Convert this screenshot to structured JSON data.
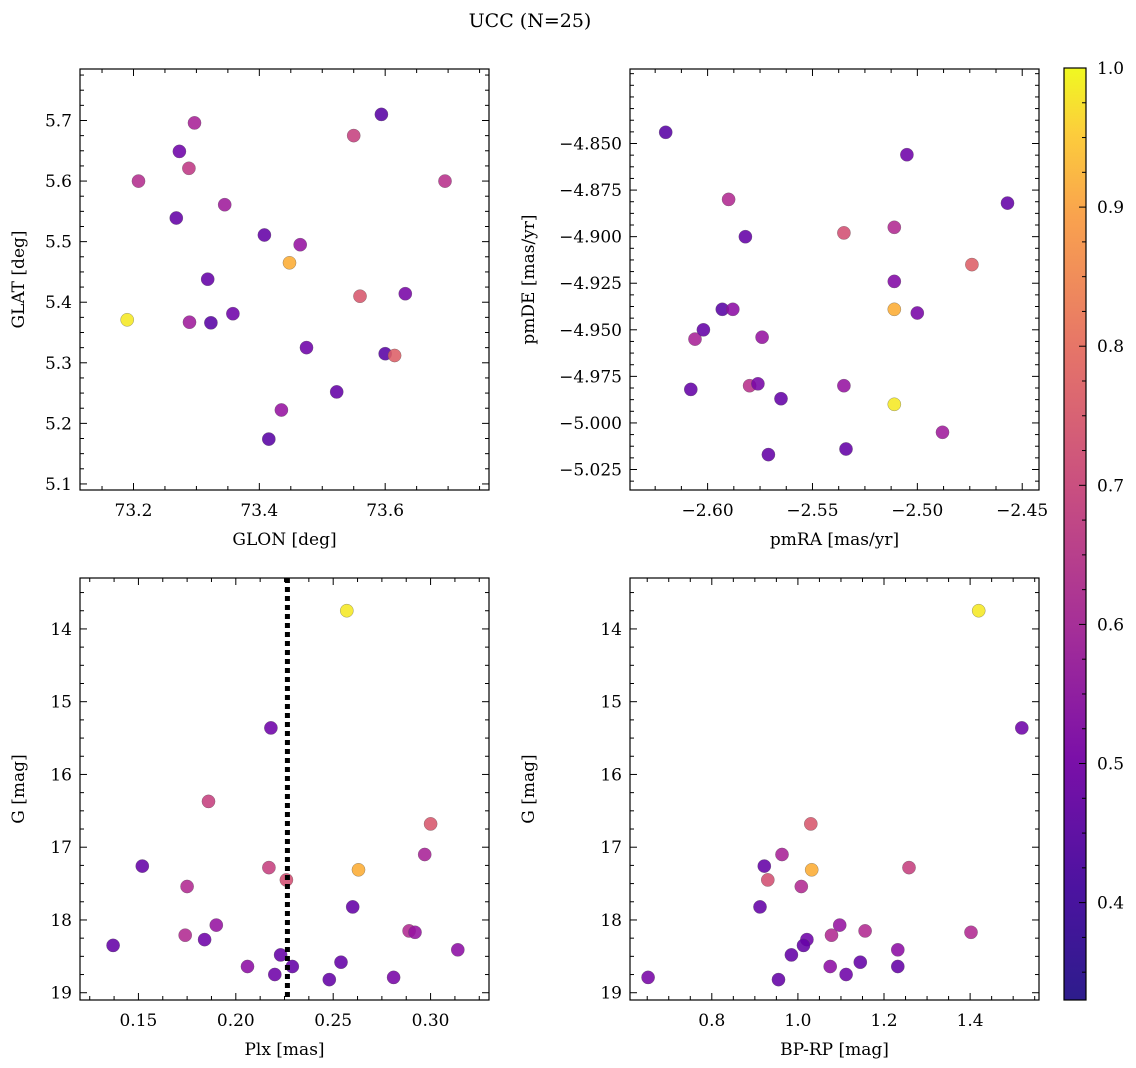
{
  "figure": {
    "title": "UCC (N=25)"
  },
  "colorbar": {
    "cmap": "plasma",
    "range": [
      0.33,
      1.0
    ],
    "ticks": [
      "1.0",
      "0.9",
      "0.8",
      "0.7",
      "0.6",
      "0.5",
      "0.4"
    ],
    "tick_values": [
      1.0,
      0.9,
      0.8,
      0.7,
      0.6,
      0.5,
      0.4
    ]
  },
  "chart_data": [
    {
      "type": "scatter",
      "xlabel": "GLON [deg]",
      "ylabel": "GLAT [deg]",
      "xlim": [
        73.115,
        73.765
      ],
      "ylim": [
        5.09,
        5.785
      ],
      "x_ticks": [
        73.2,
        73.4,
        73.6
      ],
      "x_tick_labels": [
        "73.2",
        "73.4",
        "73.6"
      ],
      "y_ticks": [
        5.1,
        5.2,
        5.3,
        5.4,
        5.5,
        5.6,
        5.7
      ],
      "y_tick_labels": [
        "5.1",
        "5.2",
        "5.3",
        "5.4",
        "5.5",
        "5.6",
        "5.7"
      ],
      "invert_y": false,
      "points": [
        {
          "x": 73.19,
          "y": 5.371,
          "c": 0.97
        },
        {
          "x": 73.208,
          "y": 5.6,
          "c": 0.55
        },
        {
          "x": 73.268,
          "y": 5.539,
          "c": 0.38
        },
        {
          "x": 73.273,
          "y": 5.649,
          "c": 0.4
        },
        {
          "x": 73.288,
          "y": 5.621,
          "c": 0.58
        },
        {
          "x": 73.289,
          "y": 5.367,
          "c": 0.5
        },
        {
          "x": 73.297,
          "y": 5.696,
          "c": 0.52
        },
        {
          "x": 73.318,
          "y": 5.438,
          "c": 0.38
        },
        {
          "x": 73.323,
          "y": 5.366,
          "c": 0.36
        },
        {
          "x": 73.345,
          "y": 5.561,
          "c": 0.5
        },
        {
          "x": 73.358,
          "y": 5.381,
          "c": 0.4
        },
        {
          "x": 73.408,
          "y": 5.511,
          "c": 0.38
        },
        {
          "x": 73.415,
          "y": 5.174,
          "c": 0.36
        },
        {
          "x": 73.435,
          "y": 5.222,
          "c": 0.48
        },
        {
          "x": 73.448,
          "y": 5.465,
          "c": 0.86
        },
        {
          "x": 73.465,
          "y": 5.495,
          "c": 0.48
        },
        {
          "x": 73.475,
          "y": 5.325,
          "c": 0.4
        },
        {
          "x": 73.523,
          "y": 5.252,
          "c": 0.38
        },
        {
          "x": 73.55,
          "y": 5.675,
          "c": 0.6
        },
        {
          "x": 73.56,
          "y": 5.41,
          "c": 0.66
        },
        {
          "x": 73.594,
          "y": 5.71,
          "c": 0.36
        },
        {
          "x": 73.6,
          "y": 5.315,
          "c": 0.36
        },
        {
          "x": 73.615,
          "y": 5.312,
          "c": 0.68
        },
        {
          "x": 73.632,
          "y": 5.414,
          "c": 0.42
        },
        {
          "x": 73.695,
          "y": 5.6,
          "c": 0.56
        }
      ]
    },
    {
      "type": "scatter",
      "xlabel": "pmRA [mas/yr]",
      "ylabel": "pmDE [mas/yr]",
      "xlim": [
        -2.637,
        -2.442
      ],
      "ylim": [
        -5.036,
        -4.81
      ],
      "x_ticks": [
        -2.6,
        -2.55,
        -2.5,
        -2.45
      ],
      "x_tick_labels": [
        "−2.60",
        "−2.55",
        "−2.50",
        "−2.45"
      ],
      "y_ticks": [
        -5.025,
        -5.0,
        -4.975,
        -4.95,
        -4.925,
        -4.9,
        -4.875,
        -4.85
      ],
      "y_tick_labels": [
        "−5.025",
        "−5.000",
        "−4.975",
        "−4.950",
        "−4.925",
        "−4.900",
        "−4.875",
        "−4.850"
      ],
      "invert_y": false,
      "points": [
        {
          "x": -2.62,
          "y": -4.844,
          "c": 0.36
        },
        {
          "x": -2.606,
          "y": -4.955,
          "c": 0.52
        },
        {
          "x": -2.602,
          "y": -4.95,
          "c": 0.38
        },
        {
          "x": -2.608,
          "y": -4.982,
          "c": 0.38
        },
        {
          "x": -2.593,
          "y": -4.939,
          "c": 0.36
        },
        {
          "x": -2.59,
          "y": -4.88,
          "c": 0.54
        },
        {
          "x": -2.588,
          "y": -4.939,
          "c": 0.46
        },
        {
          "x": -2.582,
          "y": -4.9,
          "c": 0.38
        },
        {
          "x": -2.58,
          "y": -4.98,
          "c": 0.56
        },
        {
          "x": -2.576,
          "y": -4.979,
          "c": 0.42
        },
        {
          "x": -2.574,
          "y": -4.954,
          "c": 0.48
        },
        {
          "x": -2.571,
          "y": -5.017,
          "c": 0.38
        },
        {
          "x": -2.565,
          "y": -4.987,
          "c": 0.38
        },
        {
          "x": -2.535,
          "y": -4.898,
          "c": 0.64
        },
        {
          "x": -2.535,
          "y": -4.98,
          "c": 0.48
        },
        {
          "x": -2.534,
          "y": -5.014,
          "c": 0.38
        },
        {
          "x": -2.511,
          "y": -4.895,
          "c": 0.54
        },
        {
          "x": -2.511,
          "y": -4.924,
          "c": 0.44
        },
        {
          "x": -2.511,
          "y": -4.939,
          "c": 0.86
        },
        {
          "x": -2.511,
          "y": -4.99,
          "c": 0.97
        },
        {
          "x": -2.505,
          "y": -4.856,
          "c": 0.4
        },
        {
          "x": -2.5,
          "y": -4.941,
          "c": 0.42
        },
        {
          "x": -2.488,
          "y": -5.005,
          "c": 0.5
        },
        {
          "x": -2.474,
          "y": -4.915,
          "c": 0.68
        },
        {
          "x": -2.457,
          "y": -4.882,
          "c": 0.38
        }
      ]
    },
    {
      "type": "scatter",
      "xlabel": "Plx [mas]",
      "ylabel": "G [mag]",
      "xlim": [
        0.12,
        0.33
      ],
      "ylim": [
        19.1,
        13.3
      ],
      "x_ticks": [
        0.15,
        0.2,
        0.25,
        0.3
      ],
      "x_tick_labels": [
        "0.15",
        "0.20",
        "0.25",
        "0.30"
      ],
      "y_ticks": [
        14,
        15,
        16,
        17,
        18,
        19
      ],
      "y_tick_labels": [
        "14",
        "15",
        "16",
        "17",
        "18",
        "19"
      ],
      "invert_y": true,
      "vline": {
        "x": 0.2265,
        "style": "dotted"
      },
      "points": [
        {
          "x": 0.257,
          "y": 13.75,
          "c": 0.97
        },
        {
          "x": 0.218,
          "y": 15.36,
          "c": 0.4
        },
        {
          "x": 0.186,
          "y": 16.37,
          "c": 0.6
        },
        {
          "x": 0.3,
          "y": 16.68,
          "c": 0.66
        },
        {
          "x": 0.297,
          "y": 17.1,
          "c": 0.52
        },
        {
          "x": 0.152,
          "y": 17.26,
          "c": 0.38
        },
        {
          "x": 0.217,
          "y": 17.28,
          "c": 0.6
        },
        {
          "x": 0.263,
          "y": 17.31,
          "c": 0.86
        },
        {
          "x": 0.226,
          "y": 17.45,
          "c": 0.64
        },
        {
          "x": 0.175,
          "y": 17.54,
          "c": 0.54
        },
        {
          "x": 0.26,
          "y": 17.82,
          "c": 0.38
        },
        {
          "x": 0.19,
          "y": 18.07,
          "c": 0.48
        },
        {
          "x": 0.289,
          "y": 18.15,
          "c": 0.54
        },
        {
          "x": 0.292,
          "y": 18.17,
          "c": 0.48
        },
        {
          "x": 0.174,
          "y": 18.21,
          "c": 0.54
        },
        {
          "x": 0.184,
          "y": 18.27,
          "c": 0.4
        },
        {
          "x": 0.137,
          "y": 18.35,
          "c": 0.38
        },
        {
          "x": 0.314,
          "y": 18.41,
          "c": 0.46
        },
        {
          "x": 0.223,
          "y": 18.48,
          "c": 0.38
        },
        {
          "x": 0.254,
          "y": 18.58,
          "c": 0.38
        },
        {
          "x": 0.206,
          "y": 18.64,
          "c": 0.46
        },
        {
          "x": 0.229,
          "y": 18.64,
          "c": 0.38
        },
        {
          "x": 0.22,
          "y": 18.75,
          "c": 0.4
        },
        {
          "x": 0.281,
          "y": 18.79,
          "c": 0.42
        },
        {
          "x": 0.248,
          "y": 18.82,
          "c": 0.38
        }
      ]
    },
    {
      "type": "scatter",
      "xlabel": "BP-RP [mag]",
      "ylabel": "G [mag]",
      "xlim": [
        0.61,
        1.56
      ],
      "ylim": [
        19.1,
        13.3
      ],
      "x_ticks": [
        0.8,
        1.0,
        1.2,
        1.4
      ],
      "x_tick_labels": [
        "0.8",
        "1.0",
        "1.2",
        "1.4"
      ],
      "y_ticks": [
        14,
        15,
        16,
        17,
        18,
        19
      ],
      "y_tick_labels": [
        "14",
        "15",
        "16",
        "17",
        "18",
        "19"
      ],
      "invert_y": true,
      "points": [
        {
          "x": 1.42,
          "y": 13.75,
          "c": 0.97
        },
        {
          "x": 1.52,
          "y": 15.36,
          "c": 0.4
        },
        {
          "x": 1.03,
          "y": 16.68,
          "c": 0.66
        },
        {
          "x": 0.963,
          "y": 17.1,
          "c": 0.52
        },
        {
          "x": 0.922,
          "y": 17.26,
          "c": 0.38
        },
        {
          "x": 1.258,
          "y": 17.28,
          "c": 0.6
        },
        {
          "x": 1.032,
          "y": 17.31,
          "c": 0.86
        },
        {
          "x": 0.93,
          "y": 17.45,
          "c": 0.64
        },
        {
          "x": 1.008,
          "y": 17.54,
          "c": 0.54
        },
        {
          "x": 0.912,
          "y": 17.82,
          "c": 0.38
        },
        {
          "x": 1.097,
          "y": 18.07,
          "c": 0.48
        },
        {
          "x": 1.156,
          "y": 18.15,
          "c": 0.54
        },
        {
          "x": 1.402,
          "y": 18.17,
          "c": 0.54
        },
        {
          "x": 1.078,
          "y": 18.21,
          "c": 0.54
        },
        {
          "x": 1.021,
          "y": 18.27,
          "c": 0.4
        },
        {
          "x": 1.013,
          "y": 18.35,
          "c": 0.38
        },
        {
          "x": 1.232,
          "y": 18.41,
          "c": 0.46
        },
        {
          "x": 0.985,
          "y": 18.48,
          "c": 0.38
        },
        {
          "x": 1.145,
          "y": 18.58,
          "c": 0.38
        },
        {
          "x": 1.075,
          "y": 18.64,
          "c": 0.46
        },
        {
          "x": 1.232,
          "y": 18.64,
          "c": 0.38
        },
        {
          "x": 1.112,
          "y": 18.75,
          "c": 0.4
        },
        {
          "x": 0.652,
          "y": 18.79,
          "c": 0.42
        },
        {
          "x": 0.955,
          "y": 18.82,
          "c": 0.38
        }
      ]
    }
  ]
}
